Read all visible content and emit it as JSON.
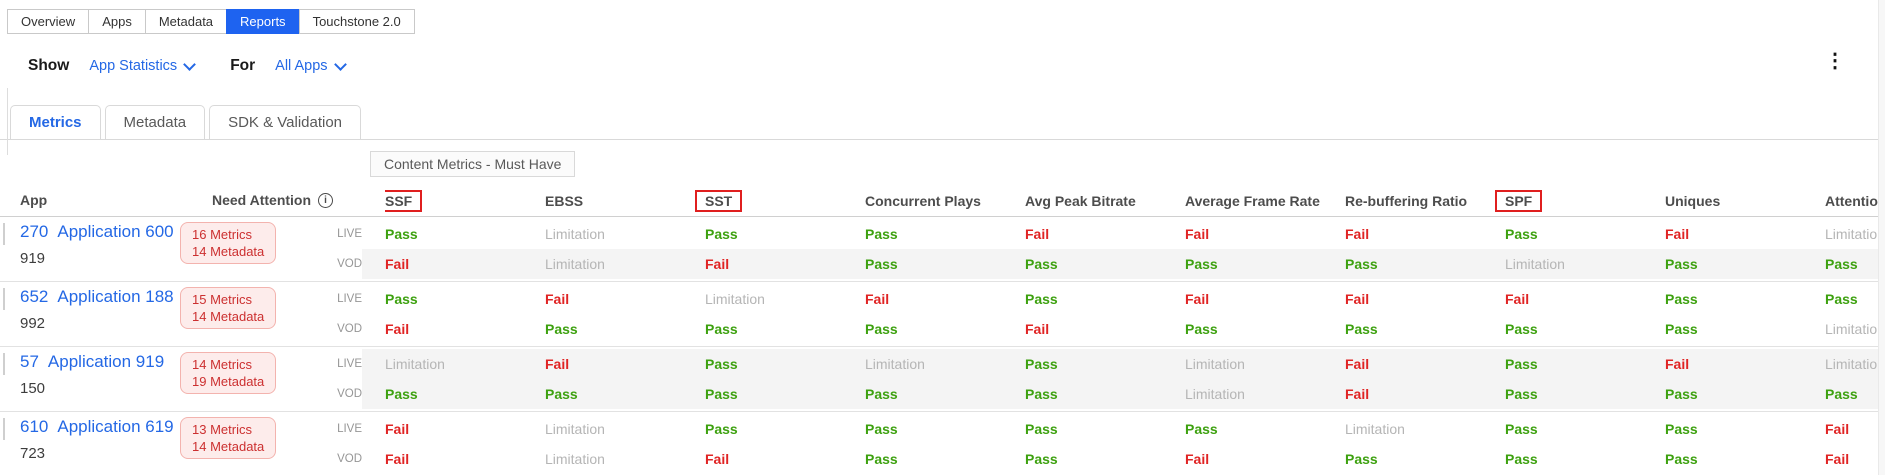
{
  "top_nav": {
    "tabs": [
      {
        "label": "Overview",
        "active": false
      },
      {
        "label": "Apps",
        "active": false
      },
      {
        "label": "Metadata",
        "active": false
      },
      {
        "label": "Reports",
        "active": true
      },
      {
        "label": "Touchstone 2.0",
        "active": false
      }
    ]
  },
  "toolbar": {
    "show_label": "Show",
    "show_value": "App Statistics",
    "for_label": "For",
    "for_value": "All Apps",
    "kebab": "⋮"
  },
  "sub_tabs": {
    "tabs": [
      {
        "label": "Metrics",
        "active": true
      },
      {
        "label": "Metadata",
        "active": false
      },
      {
        "label": "SDK & Validation",
        "active": false
      }
    ]
  },
  "content_chip": {
    "label": "Content Metrics - Must Have"
  },
  "table": {
    "app_header": "App",
    "need_attention_header": "Need Attention",
    "info_icon": "i",
    "metric_columns": [
      {
        "label": "SSF",
        "highlighted": true
      },
      {
        "label": "EBSS",
        "highlighted": false
      },
      {
        "label": "SST",
        "highlighted": true
      },
      {
        "label": "Concurrent Plays",
        "highlighted": false
      },
      {
        "label": "Avg Peak Bitrate",
        "highlighted": false
      },
      {
        "label": "Average Frame Rate",
        "highlighted": false
      },
      {
        "label": "Re-buffering Ratio",
        "highlighted": false
      },
      {
        "label": "SPF",
        "highlighted": true
      },
      {
        "label": "Uniques",
        "highlighted": false
      },
      {
        "label": "Attention",
        "highlighted": false
      }
    ],
    "rows": [
      {
        "app_id": "270",
        "app_name": "Application 600",
        "app_number": "919",
        "badge_lines": [
          "16 Metrics",
          "14 Metadata"
        ],
        "sub_rows": [
          {
            "type": "LIVE",
            "shaded": false,
            "values": [
              "Pass",
              "Limitation",
              "Pass",
              "Pass",
              "Fail",
              "Fail",
              "Fail",
              "Pass",
              "Fail",
              "Limitation"
            ]
          },
          {
            "type": "VOD",
            "shaded": true,
            "values": [
              "Fail",
              "Limitation",
              "Fail",
              "Pass",
              "Pass",
              "Pass",
              "Pass",
              "Limitation",
              "Pass",
              "Pass"
            ]
          }
        ]
      },
      {
        "app_id": "652",
        "app_name": "Application 188",
        "app_number": "992",
        "badge_lines": [
          "15 Metrics",
          "14 Metadata"
        ],
        "sub_rows": [
          {
            "type": "LIVE",
            "shaded": false,
            "values": [
              "Pass",
              "Fail",
              "Limitation",
              "Fail",
              "Pass",
              "Fail",
              "Fail",
              "Fail",
              "Pass",
              "Pass"
            ]
          },
          {
            "type": "VOD",
            "shaded": false,
            "values": [
              "Fail",
              "Pass",
              "Pass",
              "Pass",
              "Fail",
              "Pass",
              "Pass",
              "Pass",
              "Pass",
              "Limitation"
            ]
          }
        ]
      },
      {
        "app_id": "57",
        "app_name": "Application 919",
        "app_number": "150",
        "badge_lines": [
          "14 Metrics",
          "19 Metadata"
        ],
        "sub_rows": [
          {
            "type": "LIVE",
            "shaded": true,
            "values": [
              "Limitation",
              "Fail",
              "Pass",
              "Limitation",
              "Pass",
              "Limitation",
              "Fail",
              "Pass",
              "Fail",
              "Limitation"
            ]
          },
          {
            "type": "VOD",
            "shaded": true,
            "values": [
              "Pass",
              "Pass",
              "Pass",
              "Pass",
              "Pass",
              "Limitation",
              "Fail",
              "Pass",
              "Pass",
              "Pass"
            ]
          }
        ]
      },
      {
        "app_id": "610",
        "app_name": "Application 619",
        "app_number": "723",
        "badge_lines": [
          "13 Metrics",
          "14 Metadata"
        ],
        "sub_rows": [
          {
            "type": "LIVE",
            "shaded": false,
            "values": [
              "Fail",
              "Limitation",
              "Pass",
              "Pass",
              "Pass",
              "Pass",
              "Limitation",
              "Pass",
              "Pass",
              "Fail"
            ]
          },
          {
            "type": "VOD",
            "shaded": false,
            "values": [
              "Fail",
              "Limitation",
              "Fail",
              "Pass",
              "Pass",
              "Fail",
              "Pass",
              "Pass",
              "Pass",
              "Fail"
            ]
          }
        ]
      }
    ]
  },
  "colors": {
    "pass": "#3da10f",
    "fail": "#e02424",
    "limitation": "#b5b5b5",
    "active_tab_blue": "#1e63f0",
    "link_blue": "#2468e5",
    "highlight_box_red": "#e01f1f",
    "badge_bg": "#fdeceb",
    "badge_border": "#f3b3ae",
    "badge_text": "#cc3030",
    "shaded_row": "#f4f4f4"
  }
}
